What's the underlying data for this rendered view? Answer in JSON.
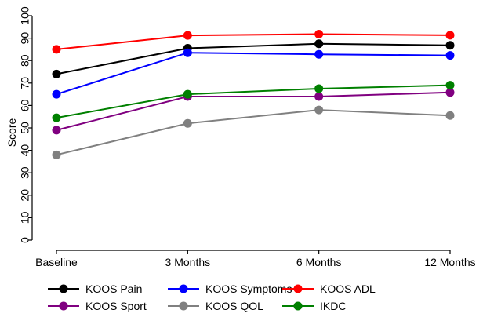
{
  "chart_data": {
    "type": "line",
    "title": "",
    "xlabel": "",
    "ylabel": "Score",
    "categories": [
      "Baseline",
      "3 Months",
      "6 Months",
      "12 Months"
    ],
    "ylim": [
      0,
      100
    ],
    "yticks": [
      0,
      10,
      20,
      30,
      40,
      50,
      60,
      70,
      80,
      90,
      100
    ],
    "grid": false,
    "legend_position": "bottom",
    "series": [
      {
        "name": "KOOS Pain",
        "color": "#000000",
        "values": [
          74,
          85.5,
          87.5,
          86.8
        ]
      },
      {
        "name": "KOOS Symptoms",
        "color": "#0000ff",
        "values": [
          65,
          83.5,
          82.8,
          82.3
        ]
      },
      {
        "name": "KOOS ADL",
        "color": "#ff0000",
        "values": [
          85,
          91.2,
          91.8,
          91.3
        ]
      },
      {
        "name": "KOOS Sport",
        "color": "#800080",
        "values": [
          49,
          64,
          64,
          65.8
        ]
      },
      {
        "name": "KOOS QOL",
        "color": "#808080",
        "values": [
          38,
          52,
          58,
          55.5
        ]
      },
      {
        "name": "IKDC",
        "color": "#008000",
        "values": [
          54.5,
          65,
          67.5,
          69
        ]
      }
    ]
  }
}
